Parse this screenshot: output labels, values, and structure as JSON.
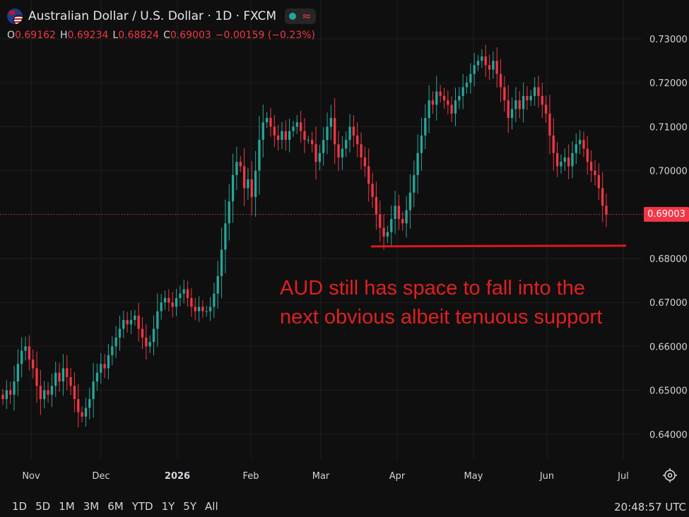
{
  "header": {
    "title": "Australian Dollar / U.S. Dollar · 1D · FXCM",
    "flag_icon": "aud-usd-flag-icon",
    "status_icon": "market-open-dot-icon",
    "wave_icon": "wave-icon"
  },
  "ohlc": {
    "o_label": "O",
    "o": "0.69162",
    "h_label": "H",
    "h": "0.69234",
    "l_label": "L",
    "l": "0.68824",
    "c_label": "C",
    "c": "0.69003",
    "change": "−0.00159 (−0.23%)"
  },
  "last_price": "0.69003",
  "annotation": {
    "line1": "AUD still has space to fall into the",
    "line2": "next obvious albeit tenuous support"
  },
  "ranges": [
    "1D",
    "5D",
    "1M",
    "3M",
    "6M",
    "YTD",
    "1Y",
    "5Y",
    "All"
  ],
  "clock": "20:48:57 UTC",
  "colors": {
    "up": "#26a69a",
    "down": "#f23645",
    "background": "#0f0f0f",
    "annotation": "#e02020"
  },
  "chart_data": {
    "type": "candlestick",
    "title": "Australian Dollar / U.S. Dollar · 1D · FXCM",
    "x_ticks": [
      "Nov",
      "Dec",
      "2026",
      "Feb",
      "Mar",
      "Apr",
      "May",
      "Jun",
      "Jul"
    ],
    "y_ticks": [
      "0.73000",
      "0.72000",
      "0.71000",
      "0.70000",
      "0.69000",
      "0.68000",
      "0.67000",
      "0.66000",
      "0.65000",
      "0.64000"
    ],
    "ylim": [
      0.6355,
      0.7335
    ],
    "support_level": 0.6826,
    "last_close": 0.69003,
    "closes": [
      0.648,
      0.65,
      0.649,
      0.652,
      0.656,
      0.659,
      0.66,
      0.657,
      0.655,
      0.651,
      0.648,
      0.65,
      0.649,
      0.651,
      0.654,
      0.652,
      0.655,
      0.653,
      0.651,
      0.648,
      0.645,
      0.644,
      0.646,
      0.648,
      0.652,
      0.654,
      0.656,
      0.655,
      0.658,
      0.66,
      0.662,
      0.664,
      0.666,
      0.665,
      0.666,
      0.667,
      0.664,
      0.662,
      0.66,
      0.661,
      0.664,
      0.668,
      0.67,
      0.671,
      0.67,
      0.669,
      0.671,
      0.672,
      0.673,
      0.671,
      0.669,
      0.668,
      0.669,
      0.668,
      0.668,
      0.669,
      0.672,
      0.676,
      0.682,
      0.688,
      0.693,
      0.699,
      0.702,
      0.701,
      0.696,
      0.698,
      0.694,
      0.7,
      0.707,
      0.711,
      0.712,
      0.71,
      0.708,
      0.707,
      0.709,
      0.707,
      0.709,
      0.71,
      0.711,
      0.709,
      0.707,
      0.707,
      0.706,
      0.702,
      0.704,
      0.707,
      0.71,
      0.712,
      0.706,
      0.703,
      0.705,
      0.707,
      0.71,
      0.708,
      0.706,
      0.703,
      0.701,
      0.697,
      0.694,
      0.69,
      0.687,
      0.685,
      0.686,
      0.689,
      0.692,
      0.689,
      0.688,
      0.691,
      0.695,
      0.699,
      0.704,
      0.708,
      0.712,
      0.716,
      0.715,
      0.718,
      0.717,
      0.716,
      0.715,
      0.713,
      0.716,
      0.717,
      0.719,
      0.72,
      0.722,
      0.724,
      0.725,
      0.726,
      0.724,
      0.723,
      0.725,
      0.722,
      0.719,
      0.716,
      0.712,
      0.714,
      0.716,
      0.714,
      0.717,
      0.716,
      0.717,
      0.719,
      0.717,
      0.715,
      0.713,
      0.708,
      0.704,
      0.701,
      0.702,
      0.703,
      0.701,
      0.704,
      0.706,
      0.707,
      0.705,
      0.702,
      0.7,
      0.699,
      0.696,
      0.692,
      0.69
    ]
  }
}
